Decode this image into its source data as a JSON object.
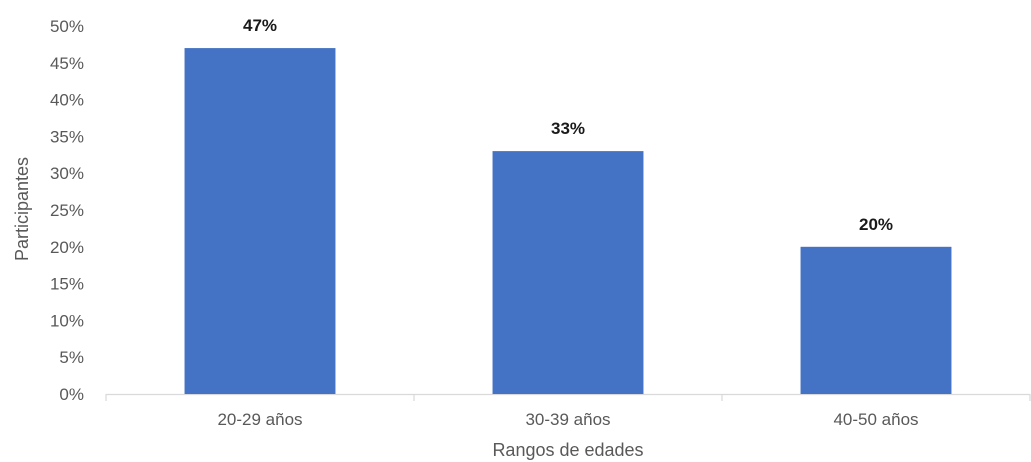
{
  "chart_data": {
    "type": "bar",
    "categories": [
      "20-29 años",
      "30-39 años",
      "40-50 años"
    ],
    "values": [
      47,
      33,
      20
    ],
    "data_labels": [
      "47%",
      "33%",
      "20%"
    ],
    "title": "",
    "xlabel": "Rangos de edades",
    "ylabel": "Participantes",
    "ylim": [
      0,
      50
    ],
    "y_ticks": [
      0,
      5,
      10,
      15,
      20,
      25,
      30,
      35,
      40,
      45,
      50
    ],
    "y_tick_labels": [
      "0%",
      "5%",
      "10%",
      "15%",
      "20%",
      "25%",
      "30%",
      "35%",
      "40%",
      "45%",
      "50%"
    ],
    "grid": false,
    "legend": "none"
  },
  "colors": {
    "bar": "#4472C4",
    "axis": "#d9d9d9",
    "text": "#595959"
  }
}
